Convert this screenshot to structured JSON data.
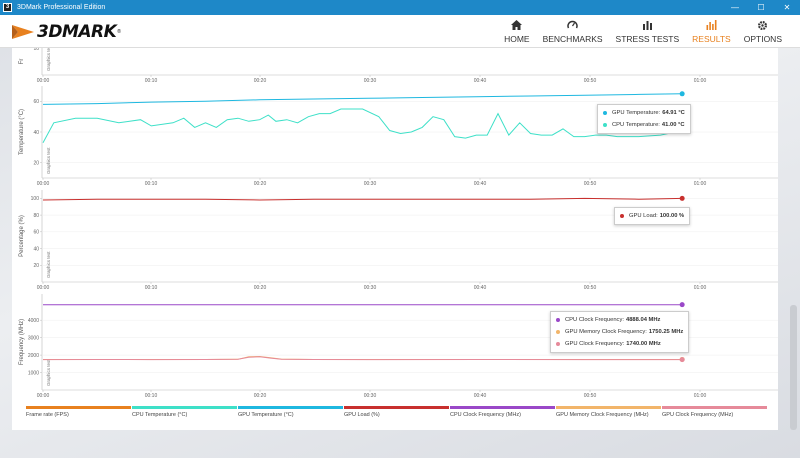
{
  "window": {
    "title": "3DMark Professional Edition",
    "app_icon": "3",
    "minimize": "—",
    "maximize": "☐",
    "close": "✕"
  },
  "header": {
    "logo_text": "3DMARK",
    "logo_tm": "®",
    "nav": [
      {
        "label": "HOME",
        "icon": "home-icon",
        "active": false
      },
      {
        "label": "BENCHMARKS",
        "icon": "speedometer-icon",
        "active": false
      },
      {
        "label": "STRESS TESTS",
        "icon": "bar-chart-icon",
        "active": false
      },
      {
        "label": "RESULTS",
        "icon": "results-chart-icon",
        "active": true
      },
      {
        "label": "OPTIONS",
        "icon": "gear-icon",
        "active": false
      }
    ]
  },
  "colors": {
    "accent": "#e8811f",
    "titlebar": "#1e88c8",
    "gpu_temp": "#1fb8e0",
    "cpu_temp": "#3ee0c8",
    "gpu_load": "#c8302e",
    "cpu_clock": "#9a48c8",
    "gpu_mem_clock": "#f2b56a",
    "gpu_clock": "#e68a9a"
  },
  "chart_data": [
    {
      "type": "line",
      "ylabel": "Fr",
      "side_label": "Graphics test",
      "yticks": [
        "10"
      ],
      "x_ticks": [
        "00:00",
        "00:10",
        "00:20",
        "00:30",
        "00:40",
        "00:50",
        "01:00"
      ]
    },
    {
      "type": "line",
      "ylabel": "Temperature (°C)",
      "side_label": "Graphics test",
      "yticks": [
        "60",
        "40",
        "20"
      ],
      "ylim": [
        10,
        70
      ],
      "x_ticks": [
        "00:00",
        "00:10",
        "00:20",
        "00:30",
        "00:40",
        "00:50",
        "01:00"
      ],
      "series": [
        {
          "name": "GPU Temperature",
          "color": "#1fb8e0",
          "x": [
            0,
            5,
            10,
            15,
            20,
            25,
            30,
            35,
            40,
            45,
            50,
            55,
            59
          ],
          "y": [
            58,
            58.5,
            59.5,
            60,
            61,
            61.5,
            62,
            62.5,
            63,
            63.5,
            64,
            64.5,
            64.91
          ]
        },
        {
          "name": "CPU Temperature",
          "color": "#3ee0c8",
          "x": [
            0,
            1,
            3,
            5,
            7,
            9,
            10,
            12,
            13,
            14,
            15,
            16,
            17,
            18,
            19,
            20,
            20.8,
            21.5,
            22.5,
            23.5,
            24.5,
            25.5,
            26.5,
            27.5,
            28.5,
            29.5,
            31,
            32,
            33,
            34,
            35,
            36,
            37,
            38,
            39,
            40,
            41,
            42,
            43,
            44,
            45,
            46,
            47,
            48,
            49,
            50,
            51,
            52,
            53,
            55,
            57,
            59
          ],
          "y": [
            33,
            46,
            49,
            49,
            46,
            48,
            44,
            46,
            49,
            43,
            46,
            43,
            48,
            49,
            47,
            48,
            51,
            47,
            48,
            46,
            50,
            52,
            52,
            55,
            55,
            55,
            50,
            41,
            39,
            40,
            43,
            50,
            48,
            37,
            36,
            38,
            38,
            52,
            38,
            46,
            39,
            38,
            38,
            42,
            37,
            37,
            38,
            38,
            37,
            37,
            38,
            41
          ]
        }
      ],
      "tooltip": [
        {
          "label": "GPU Temperature:",
          "value": "64.91 °C"
        },
        {
          "label": "CPU Temperature:",
          "value": "41.00 °C"
        }
      ]
    },
    {
      "type": "line",
      "ylabel": "Percentage (%)",
      "side_label": "Graphics test",
      "yticks": [
        "100",
        "80",
        "60",
        "40",
        "20"
      ],
      "ylim": [
        0,
        110
      ],
      "x_ticks": [
        "00:00",
        "00:10",
        "00:20",
        "00:30",
        "00:40",
        "00:50",
        "01:00"
      ],
      "series": [
        {
          "name": "GPU Load",
          "color": "#c8302e",
          "x": [
            0,
            5,
            10,
            15,
            20,
            25,
            30,
            35,
            40,
            45,
            50,
            55,
            59
          ],
          "y": [
            98,
            99,
            99,
            99,
            98,
            99,
            99,
            99,
            99,
            99,
            100,
            99,
            100
          ]
        }
      ],
      "tooltip": [
        {
          "label": "GPU Load:",
          "value": "100.00 %"
        }
      ]
    },
    {
      "type": "line",
      "ylabel": "Frequency (MHz)",
      "side_label": "Graphics test",
      "yticks": [
        "4000",
        "3000",
        "2000",
        "1000"
      ],
      "ylim": [
        0,
        5500
      ],
      "x_ticks": [
        "00:00",
        "00:10",
        "00:20",
        "00:30",
        "00:40",
        "00:50",
        "01:00"
      ],
      "series": [
        {
          "name": "CPU Clock Frequency",
          "color": "#9a48c8",
          "x": [
            0,
            10,
            20,
            30,
            40,
            50,
            59
          ],
          "y": [
            4888,
            4888,
            4888,
            4888,
            4888,
            4888,
            4888
          ]
        },
        {
          "name": "GPU Memory Clock Frequency",
          "color": "#f2b56a",
          "x": [
            0,
            5,
            10,
            15,
            18,
            19,
            20,
            21,
            22,
            25,
            30,
            40,
            50,
            59
          ],
          "y": [
            1750,
            1750,
            1750,
            1750,
            1760,
            1900,
            1920,
            1850,
            1770,
            1750,
            1750,
            1750,
            1750,
            1750
          ]
        },
        {
          "name": "GPU Clock Frequency",
          "color": "#e68a9a",
          "x": [
            0,
            5,
            10,
            15,
            18,
            19,
            20,
            21,
            22,
            25,
            30,
            40,
            50,
            59
          ],
          "y": [
            1740,
            1745,
            1740,
            1745,
            1760,
            1880,
            1900,
            1830,
            1760,
            1745,
            1740,
            1745,
            1740,
            1740
          ]
        }
      ],
      "tooltip": [
        {
          "label": "CPU Clock Frequency:",
          "value": "4888.04 MHz"
        },
        {
          "label": "GPU Memory Clock Frequency:",
          "value": "1750.25 MHz"
        },
        {
          "label": "GPU Clock Frequency:",
          "value": "1740.00 MHz"
        }
      ]
    }
  ],
  "legend": [
    {
      "label": "Frame rate (FPS)",
      "color": "#e8811f"
    },
    {
      "label": "CPU Temperature (°C)",
      "color": "#3ee0c8"
    },
    {
      "label": "GPU Temperature (°C)",
      "color": "#1fb8e0"
    },
    {
      "label": "GPU Load (%)",
      "color": "#c8302e"
    },
    {
      "label": "CPU Clock Frequency (MHz)",
      "color": "#9a48c8"
    },
    {
      "label": "GPU Memory Clock Frequency (MHz)",
      "color": "#f2b56a"
    },
    {
      "label": "GPU Clock Frequency (MHz)",
      "color": "#e68a9a"
    }
  ]
}
